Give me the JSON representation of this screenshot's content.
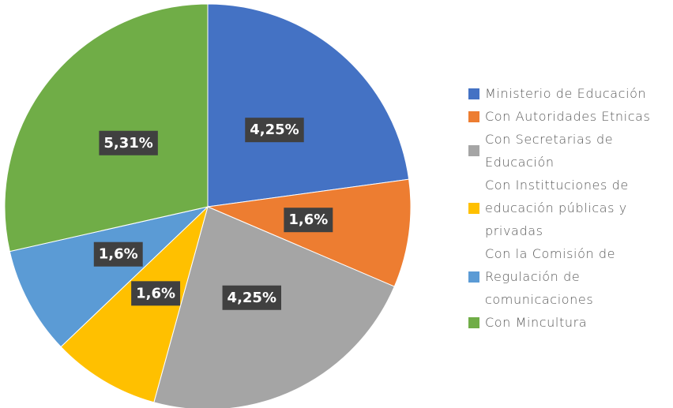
{
  "chart_data": {
    "type": "pie",
    "categories": [
      "Ministerio de Educación",
      "Con Autoridades Etnicas",
      "Con Secretarias de Educación",
      "Con Instittuciones de educación públicas y privadas",
      "Con la Comisión de Regulación de comunicaciones",
      "Con Mincultura"
    ],
    "values": [
      4.25,
      1.6,
      4.25,
      1.6,
      1.6,
      5.31
    ],
    "value_labels": [
      "4,25%",
      "1,6%",
      "4,25%",
      "1,6%",
      "1,6%",
      "5,31%"
    ],
    "colors": [
      "#4472c4",
      "#ed7d31",
      "#a5a5a5",
      "#ffc000",
      "#5b9bd5",
      "#70ad47"
    ],
    "legend": "right"
  }
}
